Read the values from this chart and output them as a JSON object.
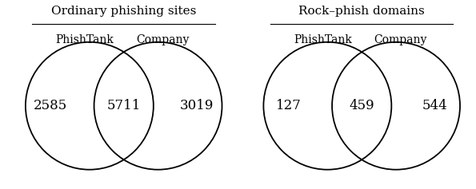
{
  "diagrams": [
    {
      "title": "Ordinary phishing sites",
      "label_left": "PhishTank",
      "label_right": "Company",
      "val_left": "2585",
      "val_center": "5711",
      "val_right": "3019"
    },
    {
      "title": "Rock–phish domains",
      "label_left": "PhishTank",
      "label_right": "Company",
      "val_left": "127",
      "val_center": "459",
      "val_right": "544"
    }
  ],
  "fig_width": 5.95,
  "fig_height": 2.37,
  "dpi": 100,
  "bg_color": "#ffffff",
  "ellipse_color": "#000000",
  "text_color": "#000000",
  "linewidth": 1.3,
  "title_fontsize": 11,
  "label_fontsize": 10,
  "val_fontsize": 12
}
